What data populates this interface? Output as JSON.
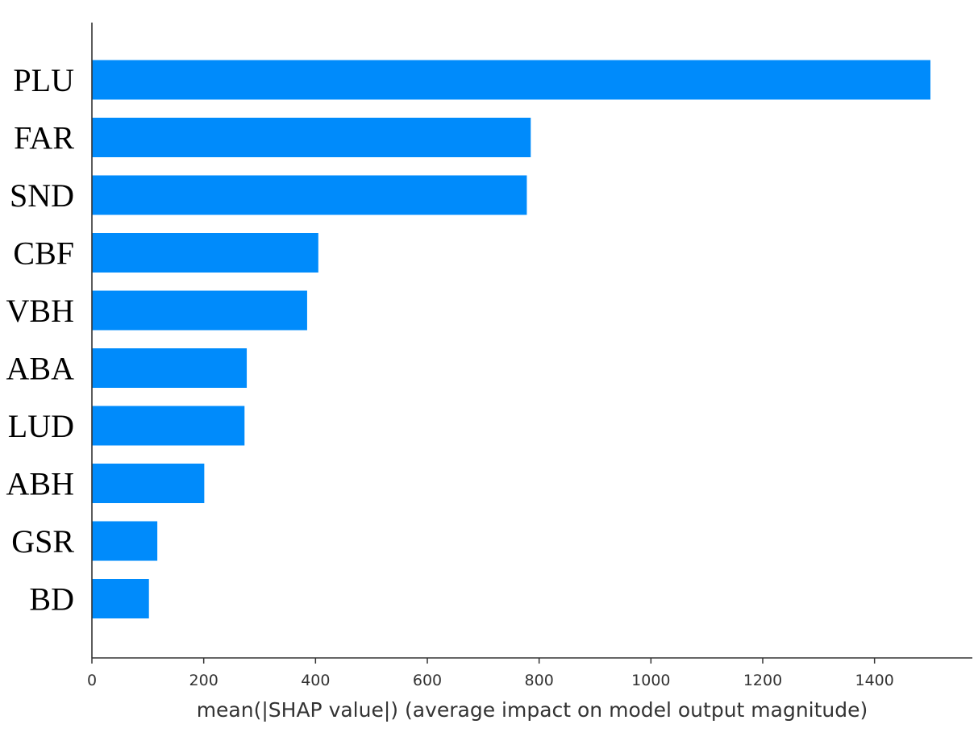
{
  "chart_data": {
    "type": "bar",
    "orientation": "horizontal",
    "categories": [
      "PLU",
      "FAR",
      "SND",
      "CBF",
      "VBH",
      "ABA",
      "LUD",
      "ABH",
      "GSR",
      "BD"
    ],
    "values": [
      1500,
      785,
      778,
      405,
      385,
      277,
      273,
      201,
      117,
      102
    ],
    "xlabel": "mean(|SHAP value|) (average impact on model output magnitude)",
    "ylabel": "",
    "xlim": [
      0,
      1580
    ],
    "xticks": [
      0,
      200,
      400,
      600,
      800,
      1000,
      1200,
      1400
    ],
    "xtick_labels": [
      "0",
      "200",
      "400",
      "600",
      "800",
      "1000",
      "1200",
      "1400"
    ],
    "bar_color": "#008bfb",
    "grid": false,
    "legend": "none"
  }
}
